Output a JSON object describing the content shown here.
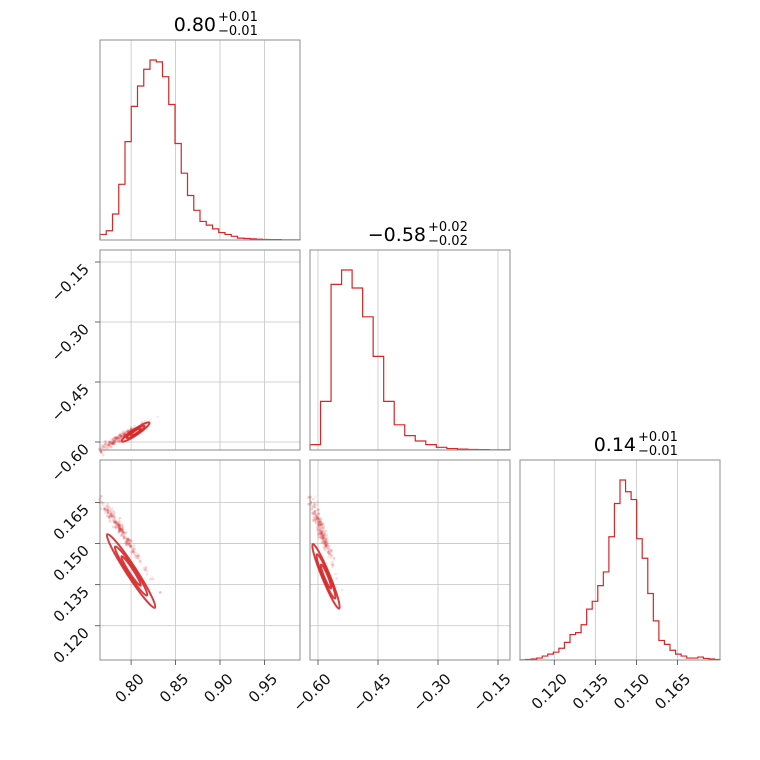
{
  "chart_data": {
    "type": "corner",
    "color": "#d62728",
    "parameters": [
      {
        "range": [
          0.765,
          0.99
        ],
        "ticks": [
          0.8,
          0.85,
          0.9,
          0.95
        ],
        "tick_labels": [
          "0.80",
          "0.85",
          "0.90",
          "0.95"
        ],
        "title": {
          "value": "0.80",
          "plus": "+0.01",
          "minus": "−0.01"
        },
        "hist": [
          0.03,
          0.05,
          0.14,
          0.3,
          0.53,
          0.72,
          0.83,
          0.92,
          0.97,
          0.96,
          0.88,
          0.73,
          0.52,
          0.36,
          0.24,
          0.16,
          0.1,
          0.08,
          0.06,
          0.04,
          0.03,
          0.02,
          0.01,
          0.008,
          0.006,
          0.004,
          0.003,
          0.002,
          0.002,
          0.001,
          0.001,
          0.001
        ]
      },
      {
        "range": [
          -0.62,
          -0.12
        ],
        "ticks": [
          -0.6,
          -0.45,
          -0.3,
          -0.15
        ],
        "tick_labels": [
          "−0.60",
          "−0.45",
          "−0.30",
          "−0.15"
        ],
        "title": {
          "value": "−0.58",
          "plus": "+0.02",
          "minus": "−0.02"
        },
        "hist": [
          0.03,
          0.27,
          0.92,
          1.0,
          0.9,
          0.74,
          0.52,
          0.27,
          0.14,
          0.08,
          0.05,
          0.03,
          0.015,
          0.008,
          0.005,
          0.003,
          0.002,
          0.001,
          0.001
        ]
      },
      {
        "range": [
          0.1075,
          0.1805
        ],
        "ticks": [
          0.12,
          0.135,
          0.15,
          0.165
        ],
        "tick_labels": [
          "0.120",
          "0.135",
          "0.150",
          "0.165"
        ],
        "title": {
          "value": "0.14",
          "plus": "+0.01",
          "minus": "−0.01"
        },
        "hist": [
          0.001,
          0.003,
          0.005,
          0.01,
          0.02,
          0.03,
          0.04,
          0.06,
          0.09,
          0.13,
          0.14,
          0.18,
          0.26,
          0.3,
          0.38,
          0.45,
          0.63,
          0.8,
          0.92,
          0.86,
          0.82,
          0.62,
          0.52,
          0.34,
          0.2,
          0.1,
          0.08,
          0.05,
          0.03,
          0.02,
          0.01,
          0.01,
          0.015,
          0.008,
          0.005,
          0.003
        ]
      }
    ],
    "pairs": [
      {
        "row": 1,
        "col": 0,
        "center": [
          0.805,
          -0.575
        ],
        "direction": [
          0.06,
          0.09
        ],
        "cloud_extent": [
          [
            0.765,
            -0.62
          ],
          [
            0.87,
            -0.48
          ]
        ],
        "contours": [
          {
            "half_length": 0.028,
            "half_width": 0.005
          },
          {
            "half_length": 0.018,
            "half_width": 0.0035
          },
          {
            "half_length": 0.01,
            "half_width": 0.002
          }
        ]
      },
      {
        "row": 2,
        "col": 0,
        "center": [
          0.8,
          0.14
        ],
        "direction": [
          0.1,
          -0.05
        ],
        "cloud_extent": [
          [
            0.765,
            0.167
          ],
          [
            0.865,
            0.115
          ]
        ],
        "contours": [
          {
            "half_length": 0.03,
            "half_width": 0.0035
          },
          {
            "half_length": 0.02,
            "half_width": 0.0025
          },
          {
            "half_length": 0.012,
            "half_width": 0.0015
          }
        ]
      },
      {
        "row": 2,
        "col": 1,
        "center": [
          -0.58,
          0.138
        ],
        "direction": [
          0.14,
          -0.05
        ],
        "cloud_extent": [
          [
            -0.62,
            0.167
          ],
          [
            -0.5,
            0.115
          ]
        ],
        "contours": [
          {
            "half_length": 0.035,
            "half_width": 0.004
          },
          {
            "half_length": 0.024,
            "half_width": 0.003
          },
          {
            "half_length": 0.013,
            "half_width": 0.0018
          }
        ]
      }
    ]
  }
}
